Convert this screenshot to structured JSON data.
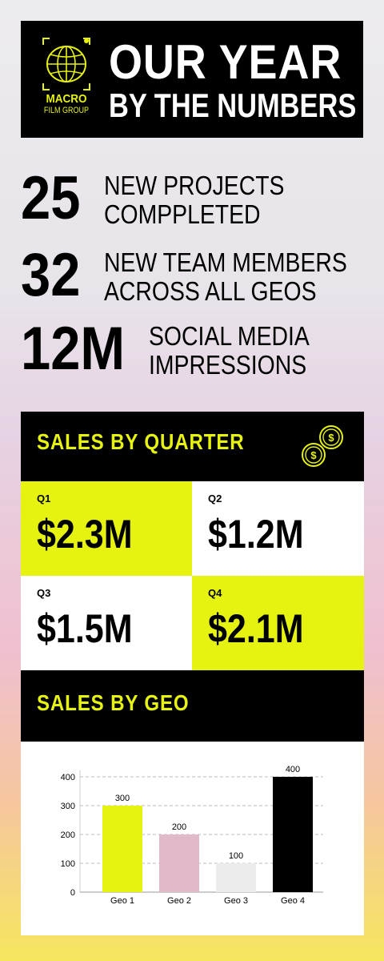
{
  "header": {
    "logo_line1": "MACRO",
    "logo_line2": "FILM GROUP",
    "title_line1": "OUR YEAR",
    "title_line2": "BY THE NUMBERS"
  },
  "stats": [
    {
      "value": "25",
      "label_line1": "NEW PROJECTS",
      "label_line2": "COMPPLETED"
    },
    {
      "value": "32",
      "label_line1": "NEW TEAM MEMBERS",
      "label_line2": "ACROSS ALL GEOS"
    },
    {
      "value": "12M",
      "label_line1": "SOCIAL MEDIA",
      "label_line2": "IMPRESSIONS"
    }
  ],
  "sales_by_quarter": {
    "title": "SALES BY QUARTER",
    "icon": "coins-icon",
    "quarters": [
      {
        "label": "Q1",
        "value": "$2.3M"
      },
      {
        "label": "Q2",
        "value": "$1.2M"
      },
      {
        "label": "Q3",
        "value": "$1.5M"
      },
      {
        "label": "Q4",
        "value": "$2.1M"
      }
    ]
  },
  "sales_by_geo": {
    "title": "SALES BY GEO"
  },
  "colors": {
    "accent": "#e6f20f",
    "black": "#000000",
    "pink": "#e2b9c9",
    "light_gray": "#ececec"
  },
  "chart_data": {
    "type": "bar",
    "categories": [
      "Geo 1",
      "Geo 2",
      "Geo 3",
      "Geo 4"
    ],
    "values": [
      300,
      200,
      100,
      400
    ],
    "bar_colors": [
      "#e6f20f",
      "#e2b9c9",
      "#ececec",
      "#000000"
    ],
    "yticks": [
      0,
      100,
      200,
      300,
      400
    ],
    "ylim": [
      0,
      400
    ],
    "grid": true,
    "title": "",
    "xlabel": "",
    "ylabel": ""
  }
}
